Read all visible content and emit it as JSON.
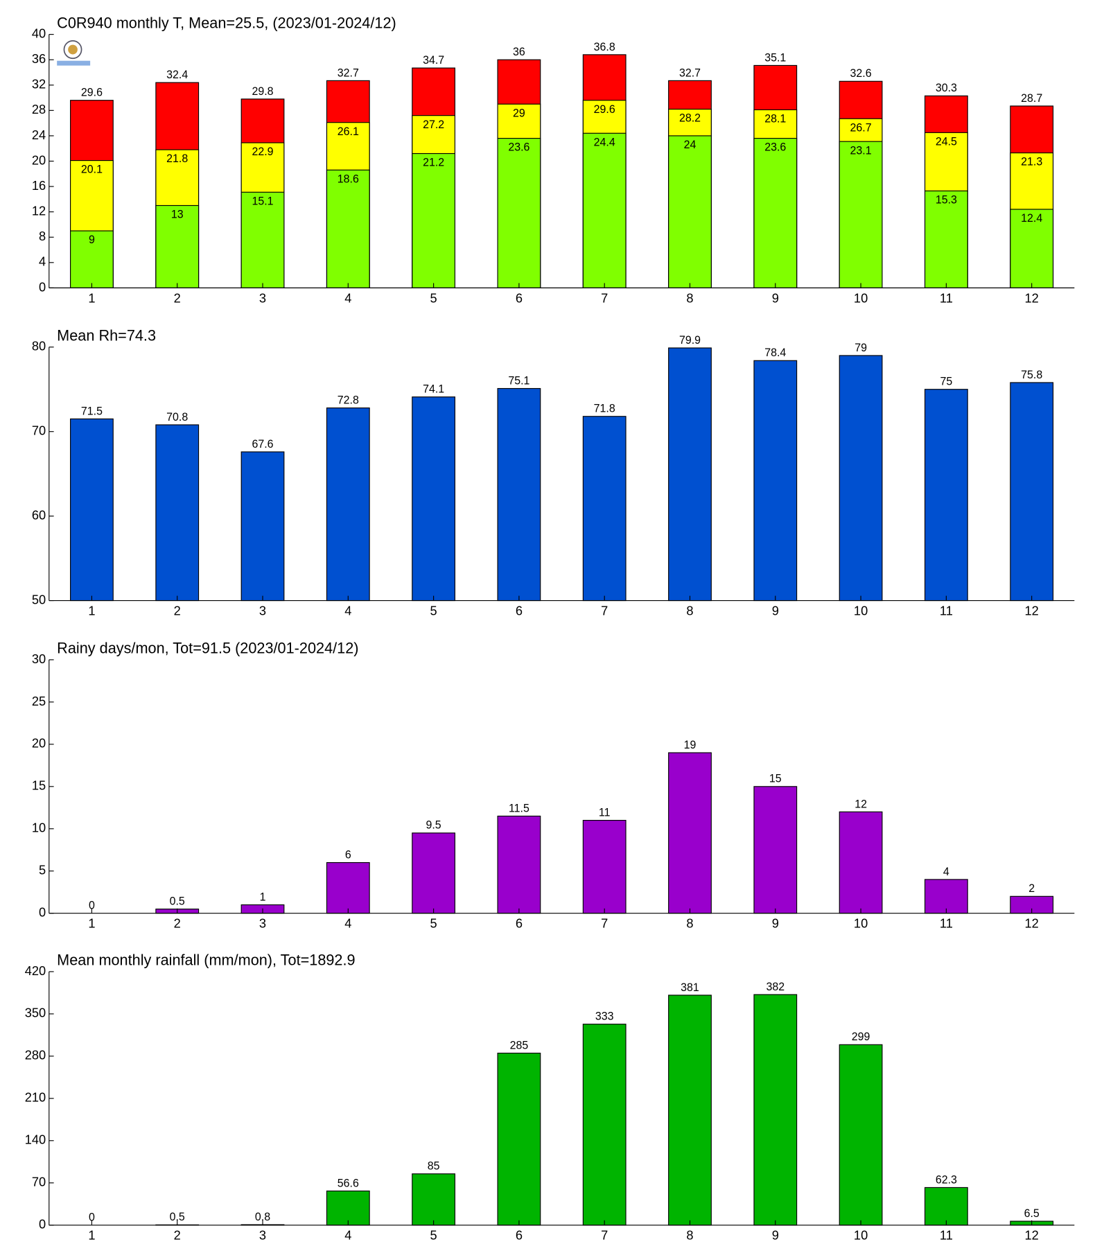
{
  "chart_data": [
    {
      "type": "bar",
      "title": "C0R940 monthly T, Mean=25.5, (2023/01-2024/12)",
      "categories": [
        "1",
        "2",
        "3",
        "4",
        "5",
        "6",
        "7",
        "8",
        "9",
        "10",
        "11",
        "12"
      ],
      "series": [
        {
          "color": "#ff0000",
          "values": [
            29.6,
            32.4,
            29.8,
            32.7,
            34.7,
            36,
            36.8,
            32.7,
            35.1,
            32.6,
            30.3,
            28.7
          ]
        },
        {
          "color": "#ffff00",
          "values": [
            20.1,
            21.8,
            22.9,
            26.1,
            27.2,
            29,
            29.6,
            28.2,
            28.1,
            26.7,
            24.5,
            21.3
          ]
        },
        {
          "color": "#80ff00",
          "values": [
            9,
            13,
            15.1,
            18.6,
            21.2,
            23.6,
            24.4,
            24,
            23.6,
            23.1,
            15.3,
            12.4
          ]
        }
      ],
      "ylim": [
        0,
        40
      ],
      "yticks": [
        0,
        4,
        8,
        12,
        16,
        20,
        24,
        28,
        32,
        36,
        40
      ]
    },
    {
      "type": "bar",
      "title": "Mean Rh=74.3",
      "categories": [
        "1",
        "2",
        "3",
        "4",
        "5",
        "6",
        "7",
        "8",
        "9",
        "10",
        "11",
        "12"
      ],
      "series": [
        {
          "color": "#0050d0",
          "values": [
            71.5,
            70.8,
            67.6,
            72.8,
            74.1,
            75.1,
            71.8,
            79.9,
            78.4,
            79,
            75,
            75.8
          ]
        }
      ],
      "ylim": [
        50,
        80
      ],
      "yticks": [
        50,
        60,
        70,
        80
      ]
    },
    {
      "type": "bar",
      "title": "Rainy days/mon, Tot=91.5 (2023/01-2024/12)",
      "categories": [
        "1",
        "2",
        "3",
        "4",
        "5",
        "6",
        "7",
        "8",
        "9",
        "10",
        "11",
        "12"
      ],
      "series": [
        {
          "color": "#9900cc",
          "values": [
            0,
            0.5,
            1,
            6,
            9.5,
            11.5,
            11,
            19,
            15,
            12,
            4,
            2
          ]
        }
      ],
      "ylim": [
        0,
        30
      ],
      "yticks": [
        0,
        5,
        10,
        15,
        20,
        25,
        30
      ]
    },
    {
      "type": "bar",
      "title": "Mean monthly rainfall (mm/mon), Tot=1892.9",
      "categories": [
        "1",
        "2",
        "3",
        "4",
        "5",
        "6",
        "7",
        "8",
        "9",
        "10",
        "11",
        "12"
      ],
      "series": [
        {
          "color": "#00b400",
          "values": [
            0,
            0.5,
            0.8,
            56.6,
            85,
            285,
            333,
            381,
            382,
            299,
            62.3,
            6.5
          ]
        }
      ],
      "ylim": [
        0,
        420
      ],
      "yticks": [
        0,
        70,
        140,
        210,
        280,
        350,
        420
      ]
    }
  ]
}
